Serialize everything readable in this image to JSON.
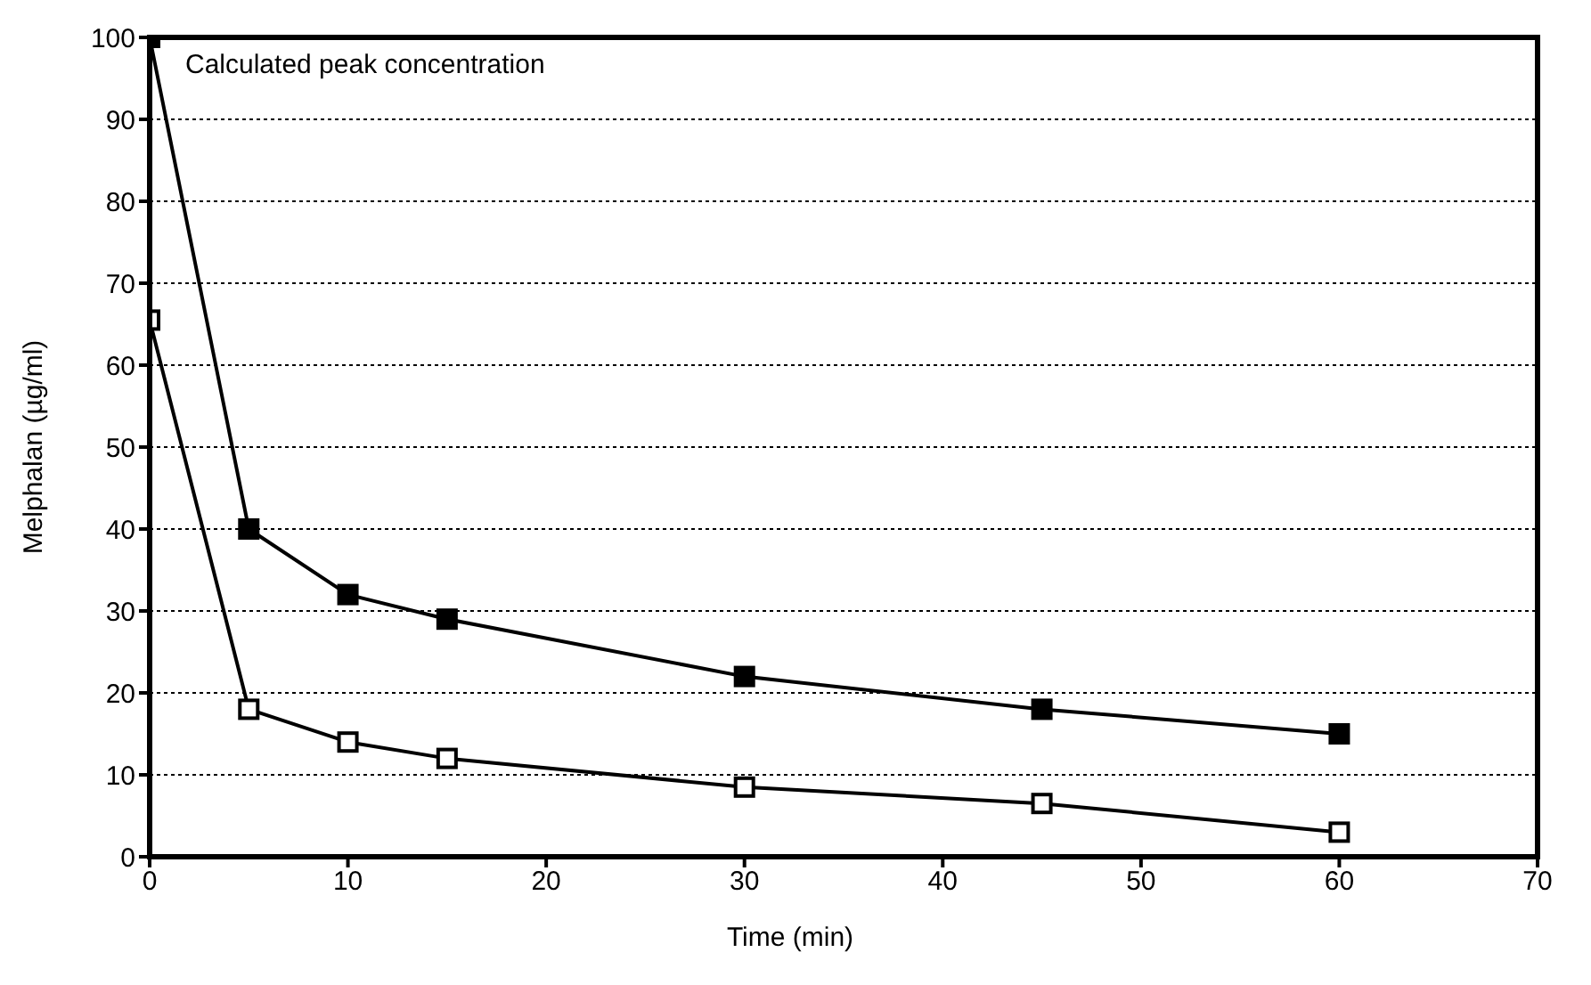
{
  "chart_data": {
    "type": "line",
    "xlabel": "Time (min)",
    "ylabel": "Melphalan (µg/ml)",
    "annotations": [
      "Calculated peak concentration"
    ],
    "x": [
      0,
      5,
      10,
      15,
      30,
      45,
      60
    ],
    "series": [
      {
        "color": "#000000",
        "values": [
          100,
          40,
          32,
          29,
          22,
          18,
          15
        ]
      },
      {
        "color": "#000000",
        "values": [
          65.5,
          18,
          14,
          12,
          8.5,
          6.5,
          3
        ]
      }
    ],
    "xlim": [
      0,
      70
    ],
    "xticks": [
      0,
      10,
      20,
      30,
      40,
      50,
      60,
      70
    ],
    "ylim": [
      0,
      100
    ],
    "yticks": [
      0,
      10,
      20,
      30,
      40,
      50,
      60,
      70,
      80,
      90,
      100
    ],
    "grid": "y",
    "marker": "square",
    "line_style": "solid"
  }
}
